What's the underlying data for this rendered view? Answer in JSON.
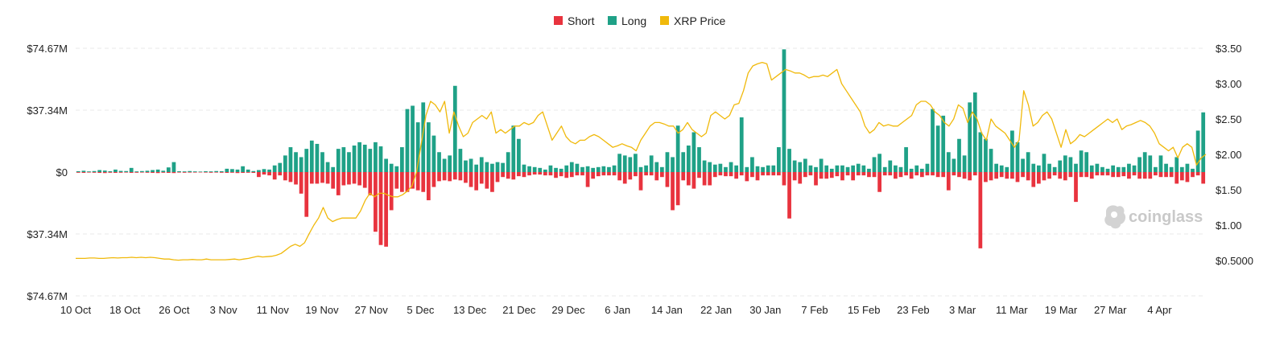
{
  "brand": {
    "watermark": "coinglass"
  },
  "colors": {
    "short": "#e8333e",
    "long": "#1fa187",
    "price": "#f0b90b",
    "grid": "#e8e8e8"
  },
  "chart_data": {
    "type": "bar",
    "legend": {
      "placement": "top-center",
      "items": [
        {
          "name": "Short",
          "color": "#e8333e"
        },
        {
          "name": "Long",
          "color": "#1fa187"
        },
        {
          "name": "XRP Price",
          "color": "#f0b90b"
        }
      ]
    },
    "left_axis": {
      "tick_values": [
        74.67,
        37.34,
        0,
        -37.34,
        -74.67
      ],
      "tick_labels": [
        "$74.67M",
        "$37.34M",
        "$0",
        "$37.34M",
        "$74.67M"
      ],
      "range": [
        -74.67,
        74.67
      ]
    },
    "right_axis": {
      "tick_values": [
        3.5,
        3.0,
        2.5,
        2.0,
        1.5,
        1.0,
        0.5
      ],
      "tick_labels": [
        "$3.50",
        "$3.00",
        "$2.50",
        "$2.00",
        "$1.50",
        "$1.00",
        "$0.5000"
      ],
      "range": [
        0.0,
        3.5
      ]
    },
    "x_axis": {
      "start": "10 Oct",
      "end": "7 Apr",
      "tick_labels": [
        "10 Oct",
        "18 Oct",
        "26 Oct",
        "3 Nov",
        "11 Nov",
        "19 Nov",
        "27 Nov",
        "5 Dec",
        "13 Dec",
        "21 Dec",
        "29 Dec",
        "6 Jan",
        "14 Jan",
        "22 Jan",
        "30 Jan",
        "7 Feb",
        "15 Feb",
        "23 Feb",
        "3 Mar",
        "11 Mar",
        "19 Mar",
        "27 Mar",
        "4 Apr"
      ]
    },
    "grid": true,
    "series": [
      {
        "name": "Long",
        "unit": "$M",
        "values": [
          0.5,
          0.8,
          0.4,
          0.6,
          1.2,
          0.9,
          0.5,
          1.5,
          0.7,
          0.6,
          2.5,
          0.4,
          0.6,
          0.8,
          1.2,
          1.5,
          0.8,
          2.8,
          6.0,
          0.5,
          0.4,
          0.6,
          0.4,
          0.3,
          0.5,
          0.4,
          0.6,
          0.5,
          2.0,
          1.8,
          1.5,
          3.5,
          1.5,
          0.6,
          1.2,
          1.8,
          1.5,
          4.0,
          5.5,
          10.0,
          15.0,
          12.0,
          9.0,
          14.0,
          19.0,
          17.0,
          12.0,
          6.0,
          3.0,
          14.0,
          15.0,
          12.0,
          16.0,
          18.0,
          16.5,
          14.0,
          18.0,
          15.5,
          8.0,
          5.0,
          3.5,
          15.0,
          38.0,
          40.0,
          30.0,
          42.0,
          30.0,
          22.0,
          12.0,
          8.0,
          10.0,
          52.0,
          14.0,
          7.0,
          8.0,
          4.5,
          9.0,
          6.0,
          5.0,
          6.0,
          5.5,
          12.0,
          28.0,
          20.0,
          4.5,
          3.5,
          3.0,
          2.5,
          1.5,
          4.0,
          2.5,
          2.0,
          4.0,
          6.0,
          5.0,
          3.0,
          3.5,
          2.5,
          3.0,
          3.5,
          3.0,
          4.0,
          11.0,
          10.0,
          9.0,
          11.0,
          3.0,
          4.0,
          10.0,
          6.0,
          3.0,
          12.0,
          9.0,
          28.0,
          12.0,
          16.0,
          24.0,
          15.0,
          7.0,
          6.0,
          4.5,
          5.0,
          3.0,
          6.0,
          4.0,
          33.0,
          3.0,
          9.0,
          3.5,
          3.0,
          4.0,
          4.0,
          15.0,
          74.0,
          14.0,
          7.0,
          6.0,
          8.0,
          4.0,
          3.0,
          8.0,
          4.0,
          2.0,
          4.0,
          4.0,
          3.0,
          4.0,
          5.0,
          4.0,
          2.0,
          9.0,
          11.0,
          3.0,
          7.0,
          4.0,
          3.0,
          15.0,
          2.0,
          4.0,
          2.0,
          5.0,
          38.0,
          28.0,
          34.0,
          12.0,
          8.0,
          20.0,
          10.0,
          42.0,
          48.0,
          24.0,
          20.0,
          14.0,
          5.0,
          4.0,
          3.0,
          25.0,
          18.0,
          8.0,
          12.0,
          5.0,
          4.0,
          11.0,
          5.0,
          3.0,
          7.0,
          10.0,
          9.0,
          5.0,
          13.0,
          12.0,
          4.0,
          5.0,
          3.0,
          2.0,
          4.0,
          3.0,
          3.0,
          5.0,
          4.0,
          9.0,
          12.0,
          10.0,
          3.0,
          10.0,
          5.0,
          3.0,
          9.0,
          3.0,
          5.0,
          2.0,
          25.0,
          36.0
        ],
        "color": "#1fa187"
      },
      {
        "name": "Short",
        "unit": "$M",
        "values": [
          0.4,
          0.5,
          0.3,
          0.4,
          0.5,
          0.6,
          0.4,
          0.5,
          0.4,
          0.3,
          0.5,
          0.4,
          0.3,
          0.4,
          0.5,
          0.6,
          0.4,
          0.5,
          0.6,
          0.3,
          0.4,
          0.3,
          0.3,
          0.2,
          0.3,
          0.4,
          0.3,
          0.4,
          0.5,
          0.4,
          0.6,
          0.5,
          0.4,
          0.5,
          3.0,
          1.5,
          2.0,
          4.5,
          2.0,
          5.0,
          6.0,
          7.5,
          13.0,
          27.0,
          7.0,
          7.0,
          6.5,
          7.0,
          10.0,
          14.0,
          8.0,
          7.5,
          7.0,
          8.0,
          9.5,
          14.0,
          36.0,
          44.0,
          45.0,
          23.0,
          10.0,
          12.0,
          12.0,
          10.0,
          11.0,
          12.0,
          17.0,
          9.0,
          5.5,
          5.0,
          5.5,
          4.5,
          5.0,
          6.5,
          9.0,
          11.0,
          7.0,
          10.0,
          12.0,
          6.0,
          3.0,
          4.0,
          4.5,
          2.5,
          3.0,
          2.0,
          1.5,
          1.5,
          2.0,
          2.0,
          3.5,
          2.5,
          3.5,
          3.0,
          2.0,
          2.0,
          9.0,
          4.0,
          2.5,
          2.0,
          2.0,
          2.0,
          5.0,
          7.0,
          4.5,
          2.5,
          11.0,
          2.0,
          2.0,
          5.0,
          3.0,
          9.0,
          23.0,
          20.0,
          5.0,
          8.0,
          10.0,
          3.5,
          8.0,
          8.0,
          3.0,
          2.0,
          2.5,
          2.5,
          4.0,
          2.0,
          5.5,
          3.0,
          5.0,
          2.0,
          2.0,
          2.0,
          2.0,
          8.0,
          28.0,
          5.0,
          7.0,
          3.0,
          2.0,
          8.0,
          4.0,
          4.0,
          3.5,
          2.5,
          5.0,
          2.0,
          5.0,
          2.0,
          2.0,
          3.0,
          3.0,
          12.0,
          2.0,
          2.0,
          4.0,
          3.0,
          2.0,
          4.0,
          2.0,
          3.0,
          2.0,
          2.0,
          3.0,
          3.0,
          11.0,
          2.0,
          3.0,
          4.0,
          5.0,
          2.0,
          46.0,
          6.0,
          5.0,
          4.0,
          3.0,
          4.0,
          4.0,
          6.0,
          3.0,
          5.0,
          9.0,
          7.0,
          5.0,
          4.0,
          2.0,
          4.0,
          5.0,
          3.0,
          18.0,
          3.0,
          3.0,
          4.0,
          2.0,
          2.0,
          2.0,
          3.0,
          3.0,
          2.5,
          4.0,
          2.0,
          4.0,
          4.0,
          4.0,
          2.0,
          3.0,
          3.0,
          3.0,
          7.0,
          5.0,
          6.0,
          3.0,
          2.0,
          7.0,
          4.0,
          3.0,
          8.0,
          4.0,
          9.0
        ],
        "color": "#e8333e"
      },
      {
        "name": "XRP Price",
        "unit": "$",
        "values": [
          0.53,
          0.53,
          0.53,
          0.535,
          0.535,
          0.53,
          0.53,
          0.535,
          0.54,
          0.535,
          0.54,
          0.54,
          0.545,
          0.54,
          0.545,
          0.54,
          0.545,
          0.54,
          0.53,
          0.52,
          0.52,
          0.51,
          0.505,
          0.51,
          0.51,
          0.515,
          0.51,
          0.51,
          0.52,
          0.51,
          0.51,
          0.51,
          0.51,
          0.515,
          0.52,
          0.51,
          0.52,
          0.53,
          0.545,
          0.56,
          0.55,
          0.555,
          0.56,
          0.575,
          0.6,
          0.65,
          0.7,
          0.73,
          0.7,
          0.75,
          0.88,
          1.0,
          1.1,
          1.25,
          1.1,
          1.05,
          1.08,
          1.1,
          1.1,
          1.1,
          1.1,
          1.2,
          1.35,
          1.45,
          1.4,
          1.45,
          1.45,
          1.42,
          1.4,
          1.4,
          1.43,
          1.48,
          1.55,
          1.75,
          2.15,
          2.55,
          2.75,
          2.7,
          2.6,
          2.75,
          2.3,
          2.6,
          2.4,
          2.25,
          2.3,
          2.45,
          2.5,
          2.55,
          2.5,
          2.6,
          2.3,
          2.35,
          2.3,
          2.35,
          2.4,
          2.4,
          2.45,
          2.42,
          2.45,
          2.55,
          2.6,
          2.4,
          2.2,
          2.3,
          2.4,
          2.25,
          2.18,
          2.15,
          2.2,
          2.2,
          2.25,
          2.28,
          2.25,
          2.2,
          2.15,
          2.1,
          2.12,
          2.15,
          2.12,
          2.1,
          2.05,
          2.2,
          2.3,
          2.4,
          2.45,
          2.45,
          2.43,
          2.4,
          2.4,
          2.3,
          2.35,
          2.45,
          2.35,
          2.3,
          2.25,
          2.3,
          2.55,
          2.6,
          2.55,
          2.5,
          2.55,
          2.7,
          2.72,
          2.9,
          3.15,
          3.25,
          3.28,
          3.3,
          3.28,
          3.05,
          3.1,
          3.15,
          3.2,
          3.18,
          3.15,
          3.15,
          3.12,
          3.08,
          3.1,
          3.1,
          3.12,
          3.1,
          3.15,
          3.2,
          3.0,
          2.9,
          2.8,
          2.7,
          2.6,
          2.4,
          2.3,
          2.35,
          2.45,
          2.4,
          2.42,
          2.4,
          2.4,
          2.45,
          2.5,
          2.55,
          2.7,
          2.75,
          2.75,
          2.7,
          2.6,
          2.55,
          2.45,
          2.4,
          2.5,
          2.7,
          2.65,
          2.45,
          2.6,
          2.5,
          2.3,
          2.2,
          2.5,
          2.4,
          2.35,
          2.3,
          2.2,
          2.1,
          2.2,
          2.9,
          2.7,
          2.4,
          2.45,
          2.55,
          2.6,
          2.5,
          2.3,
          2.1,
          2.35,
          2.15,
          2.2,
          2.28,
          2.25,
          2.3,
          2.35,
          2.4,
          2.45,
          2.5,
          2.45,
          2.5,
          2.35,
          2.4,
          2.42,
          2.45,
          2.48,
          2.45,
          2.4,
          2.3,
          2.15,
          2.1,
          2.05,
          2.1,
          1.95,
          2.1,
          2.15,
          2.1,
          1.85,
          1.95,
          2.0
        ]
      }
    ]
  }
}
